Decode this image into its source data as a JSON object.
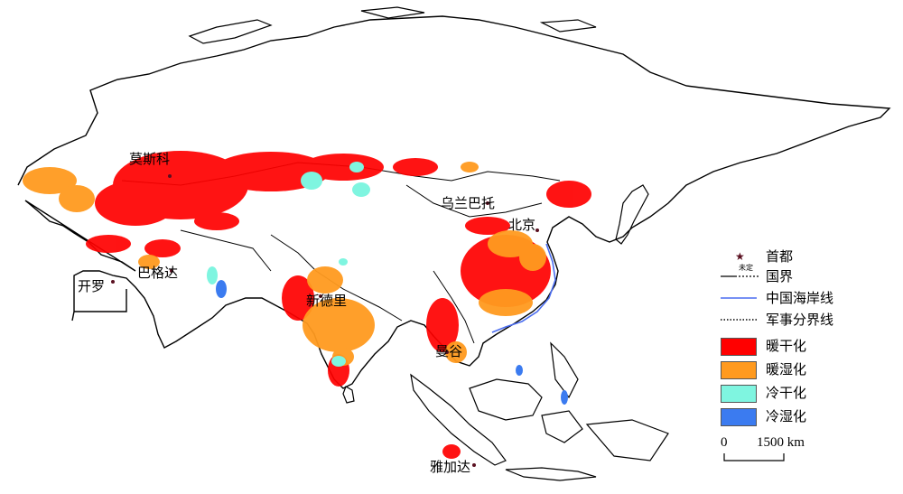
{
  "map": {
    "cities": [
      {
        "id": "moscow",
        "name": "莫斯科"
      },
      {
        "id": "ulaanbaatar",
        "name": "乌兰巴托"
      },
      {
        "id": "beijing",
        "name": "北京"
      },
      {
        "id": "cairo",
        "name": "开罗"
      },
      {
        "id": "baghdad",
        "name": "巴格达"
      },
      {
        "id": "new-delhi",
        "name": "新德里"
      },
      {
        "id": "bangkok",
        "name": "曼谷"
      },
      {
        "id": "jakarta",
        "name": "雅加达"
      }
    ],
    "colors": {
      "warm_dry": "#ff0000",
      "warm_wet": "#ff9a1f",
      "cold_dry": "#7ff5e0",
      "cold_wet": "#3b7bf0",
      "coastline_china": "#4a6cf0",
      "border": "#000000"
    }
  },
  "legend": {
    "capital": "首都",
    "undetermined": "未定",
    "border": "国界",
    "china_coastline": "中国海岸线",
    "military_line": "军事分界线",
    "classes": [
      {
        "label": "暖干化",
        "color": "#ff0000"
      },
      {
        "label": "暖湿化",
        "color": "#ff9a1f"
      },
      {
        "label": "冷干化",
        "color": "#7ff5e0"
      },
      {
        "label": "冷湿化",
        "color": "#3b7bf0"
      }
    ]
  },
  "scale": {
    "zero": "0",
    "length": "1500 km"
  }
}
